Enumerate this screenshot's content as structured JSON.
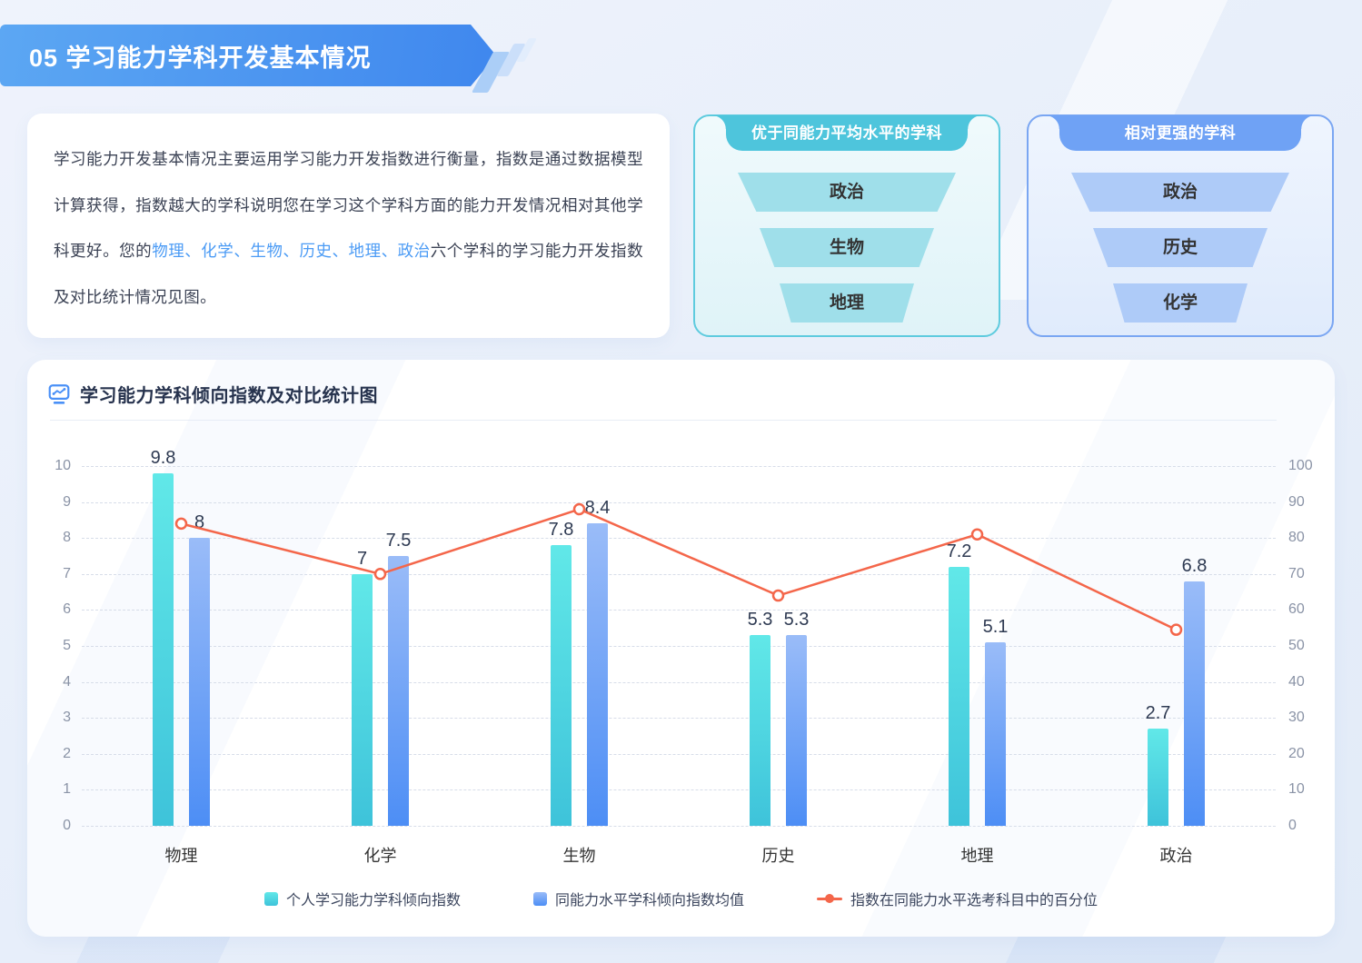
{
  "header": {
    "title": "05 学习能力学科开发基本情况",
    "color_from": "#5CA7F3",
    "color_to": "#3F87EE"
  },
  "intro": {
    "text_before": "学习能力开发基本情况主要运用学习能力开发指数进行衡量，指数是通过数据模型计算获得，指数越大的学科说明您在学习这个学科方面的能力开发情况相对其他学科更好。您的",
    "subjects": "物理、化学、生物、历史、地理、政治",
    "text_after": "六个学科的学习能力开发指数及对比统计情况见图。",
    "link_color": "#4B9BF5"
  },
  "funnel_cards": [
    {
      "title": "优于同能力平均水平的学科",
      "items": [
        "政治",
        "生物",
        "地理"
      ],
      "colors": {
        "border": "#5ECBDE",
        "header": "#4EC5DC",
        "item_bg": "#9FDFEA",
        "bg_from": "#F0FAFC",
        "bg_to": "#DFF3F8"
      }
    },
    {
      "title": "相对更强的学科",
      "items": [
        "政治",
        "历史",
        "化学"
      ],
      "colors": {
        "border": "#7AA6F2",
        "header": "#6FA2F5",
        "item_bg": "#AECBF8",
        "bg_from": "#EFF5FE",
        "bg_to": "#E0EBFC"
      }
    }
  ],
  "chart": {
    "title": "学习能力学科倾向指数及对比统计图",
    "icon": "line-chart-monitor-icon",
    "icon_color": "#4A90F7"
  },
  "chart_data": {
    "type": "bar+line",
    "title": "学习能力学科倾向指数及对比统计图",
    "categories": [
      "物理",
      "化学",
      "生物",
      "历史",
      "地理",
      "政治"
    ],
    "series": [
      {
        "name": "个人学习能力学科倾向指数",
        "type": "bar",
        "axis": "left",
        "values": [
          9.8,
          7,
          7.8,
          5.3,
          7.2,
          2.7
        ],
        "color_top": "#61E8E8",
        "color_bottom": "#3EC3DA"
      },
      {
        "name": "同能力水平学科倾向指数均值",
        "type": "bar",
        "axis": "left",
        "values": [
          8,
          7.5,
          8.4,
          5.3,
          5.1,
          6.8
        ],
        "color_top": "#9ABCF8",
        "color_bottom": "#4D8EF5"
      },
      {
        "name": "指数在同能力水平选考科目中的百分位",
        "type": "line",
        "axis": "right",
        "values": [
          84,
          70,
          88,
          64,
          81,
          54.5
        ],
        "color": "#F4664A"
      }
    ],
    "left_axis": {
      "min": 0,
      "max": 10,
      "ticks": [
        0,
        1,
        2,
        3,
        4,
        5,
        6,
        7,
        8,
        9,
        10
      ]
    },
    "right_axis": {
      "min": 0,
      "max": 100,
      "ticks": [
        0,
        10,
        20,
        30,
        40,
        50,
        60,
        70,
        80,
        90,
        100
      ]
    },
    "grid": "dashed-horizontal",
    "gridline_color": "#D7DDE9",
    "legend_position": "bottom",
    "bar_labels_shown": true,
    "line_labels_shown": false
  }
}
